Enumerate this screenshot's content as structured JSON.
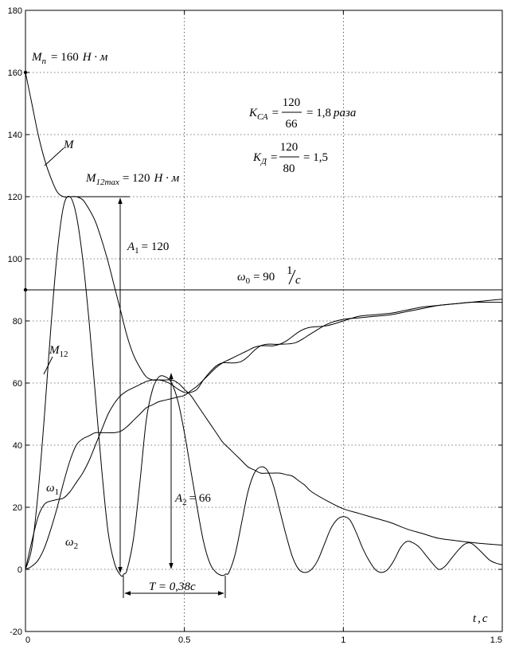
{
  "chart_data": {
    "type": "line",
    "title": "",
    "xlabel": "t, c",
    "ylabel": "",
    "xlim": [
      0,
      1.5
    ],
    "ylim": [
      -20,
      180
    ],
    "xticks": [
      0,
      0.5,
      1,
      1.5
    ],
    "xtick_labels": [
      "0",
      "0.5",
      "1",
      "1.5"
    ],
    "yticks": [
      -20,
      0,
      20,
      40,
      60,
      80,
      100,
      120,
      140,
      160,
      180
    ],
    "ytick_labels": [
      "-20",
      "0",
      "20",
      "40",
      "60",
      "80",
      "100",
      "120",
      "140",
      "160",
      "180"
    ],
    "grid": true,
    "series": [
      {
        "name": "M",
        "x": [
          0,
          0.02,
          0.04,
          0.06,
          0.08,
          0.1,
          0.12,
          0.14,
          0.16,
          0.18,
          0.2,
          0.22,
          0.24,
          0.26,
          0.28,
          0.3,
          0.32,
          0.34,
          0.36,
          0.38,
          0.4,
          0.42,
          0.44,
          0.46,
          0.48,
          0.5,
          0.52,
          0.54,
          0.56,
          0.58,
          0.6,
          0.62,
          0.64,
          0.66,
          0.68,
          0.7,
          0.72,
          0.74,
          0.76,
          0.78,
          0.8,
          0.82,
          0.84,
          0.86,
          0.88,
          0.9,
          0.95,
          1.0,
          1.05,
          1.1,
          1.15,
          1.2,
          1.25,
          1.3,
          1.35,
          1.4,
          1.45,
          1.5
        ],
        "y": [
          160,
          150,
          140,
          132,
          126,
          121.5,
          120,
          120,
          120,
          119,
          116,
          112,
          106,
          99,
          91,
          83,
          75,
          69,
          65,
          62,
          61,
          61,
          61,
          61,
          60,
          58,
          56,
          53,
          50,
          47,
          44,
          41,
          39,
          37,
          35,
          33,
          32,
          31,
          31,
          31,
          31,
          30.5,
          30,
          28.5,
          27,
          25,
          22,
          19.5,
          18,
          16.5,
          15,
          13,
          11.5,
          10,
          9.3,
          8.7,
          8.2,
          7.8
        ]
      },
      {
        "name": "M12",
        "x": [
          0,
          0.02,
          0.04,
          0.06,
          0.08,
          0.1,
          0.12,
          0.14,
          0.16,
          0.18,
          0.2,
          0.22,
          0.24,
          0.26,
          0.28,
          0.3,
          0.31,
          0.32,
          0.34,
          0.36,
          0.38,
          0.4,
          0.42,
          0.44,
          0.46,
          0.48,
          0.5,
          0.52,
          0.54,
          0.56,
          0.58,
          0.6,
          0.62,
          0.63,
          0.64,
          0.66,
          0.68,
          0.7,
          0.72,
          0.74,
          0.76,
          0.78,
          0.8,
          0.82,
          0.84,
          0.86,
          0.88,
          0.9,
          0.92,
          0.94,
          0.96,
          0.98,
          1.0,
          1.02,
          1.04,
          1.06,
          1.08,
          1.1,
          1.12,
          1.14,
          1.16,
          1.18,
          1.2,
          1.22,
          1.24,
          1.26,
          1.28,
          1.3,
          1.32,
          1.34,
          1.36,
          1.38,
          1.4,
          1.42,
          1.44,
          1.46,
          1.48,
          1.5
        ],
        "y": [
          0,
          7,
          25,
          50,
          78,
          102,
          117,
          120,
          114,
          100,
          80,
          56,
          32,
          12,
          2,
          -2,
          -1.5,
          0,
          10,
          28,
          48,
          58,
          62,
          62,
          60,
          54,
          44,
          32,
          20,
          9,
          2,
          -1,
          -2,
          -1.5,
          -1,
          5,
          15,
          25,
          31,
          33,
          32,
          27,
          19,
          11,
          4,
          0,
          -1,
          0,
          3,
          8,
          13,
          16,
          17,
          16,
          12,
          7,
          3,
          0,
          -1,
          0,
          3,
          7,
          9,
          8.5,
          7,
          4.5,
          2,
          0,
          1,
          3.5,
          6,
          8,
          8.5,
          7,
          5,
          3,
          2,
          1.5
        ]
      },
      {
        "name": "ω1",
        "x": [
          0,
          0.02,
          0.04,
          0.06,
          0.08,
          0.1,
          0.12,
          0.14,
          0.16,
          0.18,
          0.2,
          0.22,
          0.24,
          0.26,
          0.28,
          0.3,
          0.32,
          0.34,
          0.36,
          0.38,
          0.4,
          0.42,
          0.44,
          0.46,
          0.48,
          0.5,
          0.52,
          0.54,
          0.56,
          0.58,
          0.6,
          0.62,
          0.64,
          0.66,
          0.68,
          0.7,
          0.72,
          0.74,
          0.76,
          0.78,
          0.8,
          0.85,
          0.9,
          0.95,
          1.0,
          1.05,
          1.1,
          1.15,
          1.2,
          1.25,
          1.3,
          1.35,
          1.4,
          1.45,
          1.5
        ],
        "y": [
          0,
          9,
          17,
          21,
          22,
          22.5,
          23,
          25,
          28,
          31,
          35,
          40,
          45,
          50,
          53.5,
          56,
          57.5,
          58.5,
          59.5,
          60.5,
          61,
          61,
          60.5,
          59.5,
          58,
          57,
          57,
          58,
          61,
          63.5,
          65.5,
          66.5,
          66.5,
          66.5,
          67,
          68.5,
          70.5,
          72,
          72.5,
          72.5,
          72.5,
          73,
          76,
          79,
          80.5,
          81,
          81.5,
          82,
          83,
          84,
          85,
          85.5,
          86,
          86,
          86
        ]
      },
      {
        "name": "ω2",
        "x": [
          0,
          0.02,
          0.04,
          0.06,
          0.08,
          0.1,
          0.12,
          0.14,
          0.16,
          0.18,
          0.2,
          0.22,
          0.24,
          0.26,
          0.28,
          0.3,
          0.32,
          0.34,
          0.36,
          0.38,
          0.4,
          0.42,
          0.44,
          0.46,
          0.48,
          0.5,
          0.52,
          0.54,
          0.56,
          0.58,
          0.6,
          0.62,
          0.64,
          0.66,
          0.68,
          0.7,
          0.72,
          0.74,
          0.76,
          0.78,
          0.8,
          0.82,
          0.84,
          0.86,
          0.88,
          0.9,
          0.95,
          1.0,
          1.05,
          1.1,
          1.15,
          1.2,
          1.25,
          1.3,
          1.35,
          1.4,
          1.45,
          1.5
        ],
        "y": [
          0,
          1,
          3,
          7,
          13,
          20,
          28,
          35,
          40,
          42,
          43,
          44,
          44,
          44,
          44,
          44.5,
          46,
          48,
          50,
          52,
          53,
          54,
          54.5,
          55,
          55.5,
          56,
          57.5,
          59,
          61,
          63,
          65,
          66.5,
          67.5,
          68.5,
          69.5,
          70.5,
          71.5,
          72,
          72,
          72,
          72.5,
          73.5,
          75,
          76.5,
          77.5,
          78,
          78.5,
          80,
          81.5,
          82,
          82.5,
          83.5,
          84.5,
          85,
          85.5,
          86,
          86.5,
          87
        ]
      },
      {
        "name": "ω0",
        "x": [
          0,
          1.5
        ],
        "y": [
          90,
          90
        ]
      }
    ],
    "annotations": {
      "mp": "M п = 160 Н · м",
      "ksa": "K СА = 120/66 = 1,8 раза",
      "kd": "K Д = 120/80 = 1,5",
      "m": "M",
      "m12max": "M 12max = 120 Н · м",
      "a1": "A 1 = 120",
      "omega0": "ω 0 = 90 1/c",
      "m12": "M 12",
      "a2": "A 2 = 66",
      "w1": "ω 1",
      "w2": "ω 2",
      "period": "T = 0,38c",
      "axis": "t, c"
    }
  },
  "labels": {
    "mp_main": "M",
    "mp_sub": "п",
    "mp_val": "= 160",
    "mp_unit": "Н · м",
    "ksa_main": "K",
    "ksa_sub": "СА",
    "ksa_eq": "=",
    "ksa_num": "120",
    "ksa_den": "66",
    "ksa_val": "= 1,8",
    "ksa_unit": "раза",
    "kd_main": "K",
    "kd_sub": "Д",
    "kd_eq": "=",
    "kd_num": "120",
    "kd_den": "80",
    "kd_val": "= 1,5",
    "m": "M",
    "m12max_main": "M",
    "m12max_sub": "12max",
    "m12max_val": "= 120",
    "m12max_unit": "Н · м",
    "a1_main": "A",
    "a1_sub": "1",
    "a1_val": "= 120",
    "omega0_main": "ω",
    "omega0_sub": "0",
    "omega0_val": "= 90",
    "omega0_num": "1",
    "omega0_den": "c",
    "m12_main": "M",
    "m12_sub": "12",
    "a2_main": "A",
    "a2_sub": "2",
    "a2_val": "= 66",
    "w1_main": "ω",
    "w1_sub": "1",
    "w2_main": "ω",
    "w2_sub": "2",
    "period": "T = 0,38c",
    "axis_t": "t",
    "axis_sep": ",",
    "axis_c": "c"
  }
}
